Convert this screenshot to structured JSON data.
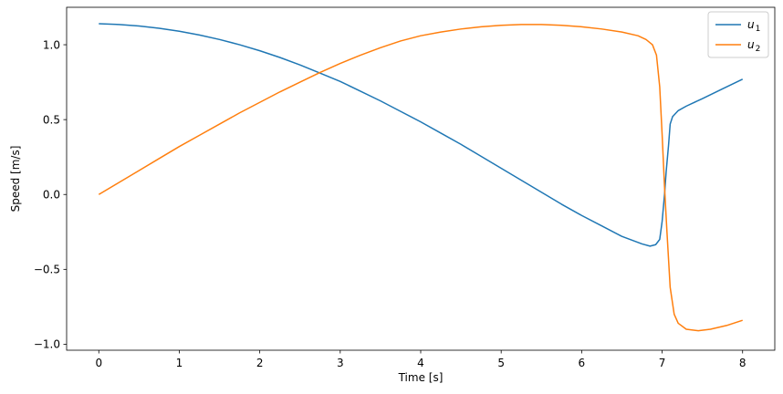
{
  "chart_data": {
    "type": "line",
    "title": "",
    "xlabel": "Time [s]",
    "ylabel": "Speed [m/s]",
    "xlim": [
      -0.4,
      8.4
    ],
    "ylim": [
      -1.04,
      1.25
    ],
    "xticks": [
      0,
      1,
      2,
      3,
      4,
      5,
      6,
      7,
      8
    ],
    "yticks": [
      -1.0,
      -0.5,
      0.0,
      0.5,
      1.0
    ],
    "xtick_labels": [
      "0",
      "1",
      "2",
      "3",
      "4",
      "5",
      "6",
      "7",
      "8"
    ],
    "ytick_labels": [
      "−1.0",
      "−0.5",
      "0.0",
      "0.5",
      "1.0"
    ],
    "grid": false,
    "legend_position": "top-right",
    "series": [
      {
        "name": "u",
        "name_sub": "1",
        "color": "#1f77b4",
        "x": [
          0,
          0.25,
          0.5,
          0.75,
          1,
          1.25,
          1.5,
          1.75,
          2,
          2.25,
          2.5,
          2.75,
          3,
          3.25,
          3.5,
          3.75,
          4,
          4.25,
          4.5,
          4.75,
          5,
          5.25,
          5.5,
          5.75,
          6,
          6.25,
          6.5,
          6.75,
          6.85,
          6.92,
          6.97,
          7.0,
          7.03,
          7.05,
          7.08,
          7.1,
          7.13,
          7.2,
          7.3,
          7.5,
          7.75,
          8
        ],
        "y": [
          1.14,
          1.135,
          1.125,
          1.11,
          1.09,
          1.065,
          1.035,
          1.0,
          0.96,
          0.915,
          0.865,
          0.81,
          0.755,
          0.69,
          0.625,
          0.555,
          0.485,
          0.41,
          0.335,
          0.255,
          0.175,
          0.095,
          0.015,
          -0.065,
          -0.14,
          -0.21,
          -0.28,
          -0.33,
          -0.345,
          -0.335,
          -0.3,
          -0.18,
          0.0,
          0.15,
          0.33,
          0.47,
          0.52,
          0.56,
          0.59,
          0.64,
          0.705,
          0.77
        ]
      },
      {
        "name": "u",
        "name_sub": "2",
        "color": "#ff7f0e",
        "x": [
          0,
          0.25,
          0.5,
          0.75,
          1,
          1.25,
          1.5,
          1.75,
          2,
          2.25,
          2.5,
          2.75,
          3,
          3.25,
          3.5,
          3.75,
          4,
          4.25,
          4.5,
          4.75,
          5,
          5.25,
          5.5,
          5.75,
          6,
          6.25,
          6.5,
          6.7,
          6.8,
          6.88,
          6.93,
          6.97,
          7.0,
          7.03,
          7.06,
          7.1,
          7.15,
          7.2,
          7.3,
          7.45,
          7.6,
          7.8,
          8
        ],
        "y": [
          0.0,
          0.08,
          0.16,
          0.24,
          0.32,
          0.395,
          0.47,
          0.545,
          0.615,
          0.685,
          0.75,
          0.815,
          0.875,
          0.93,
          0.98,
          1.025,
          1.06,
          1.085,
          1.105,
          1.12,
          1.13,
          1.135,
          1.135,
          1.13,
          1.12,
          1.105,
          1.085,
          1.06,
          1.035,
          1.0,
          0.93,
          0.72,
          0.4,
          0.05,
          -0.25,
          -0.62,
          -0.8,
          -0.86,
          -0.9,
          -0.91,
          -0.9,
          -0.875,
          -0.84
        ]
      }
    ]
  }
}
